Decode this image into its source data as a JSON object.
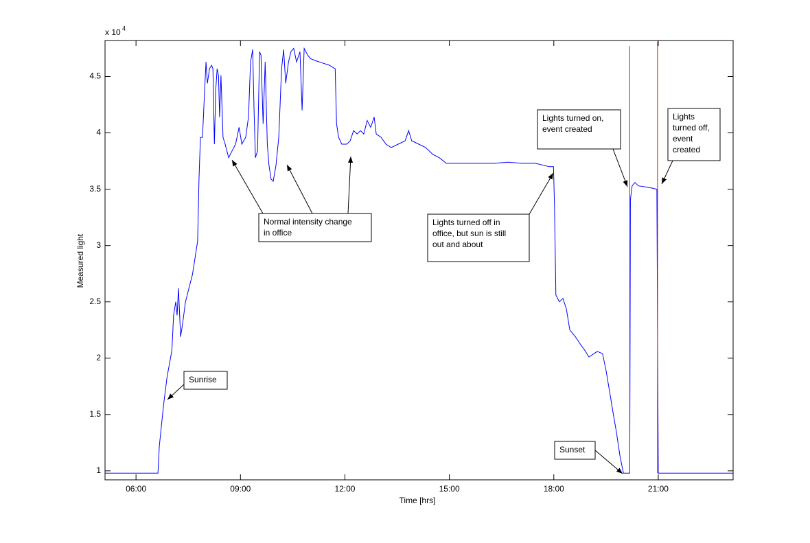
{
  "chart_data": {
    "type": "line",
    "xlabel": "Time [hrs]",
    "ylabel": "Measured light",
    "y_scale_label": {
      "base": "x 10",
      "exponent": "4"
    },
    "xlim": [
      5.11,
      23.15
    ],
    "xticks": [
      {
        "value": 6,
        "label": "06:00"
      },
      {
        "value": 9,
        "label": "09:00"
      },
      {
        "value": 12,
        "label": "12:00"
      },
      {
        "value": 15,
        "label": "15:00"
      },
      {
        "value": 18,
        "label": "18:00"
      },
      {
        "value": 21,
        "label": "21:00"
      }
    ],
    "ylim": [
      0.92,
      4.82
    ],
    "yticks": [
      1,
      1.5,
      2,
      2.5,
      3,
      3.5,
      4,
      4.5
    ],
    "grid": false,
    "series": [
      {
        "color": "#0000ff",
        "x": [
          5.11,
          6.63,
          6.67,
          6.79,
          6.89,
          7.03,
          7.08,
          7.14,
          7.18,
          7.22,
          7.28,
          7.34,
          7.42,
          7.52,
          7.62,
          7.71,
          7.77,
          7.81,
          7.85,
          7.91,
          7.97,
          8.01,
          8.05,
          8.11,
          8.17,
          8.21,
          8.25,
          8.29,
          8.33,
          8.37,
          8.4,
          8.44,
          8.5,
          8.56,
          8.66,
          8.76,
          8.86,
          8.96,
          9.04,
          9.15,
          9.23,
          9.29,
          9.35,
          9.39,
          9.43,
          9.49,
          9.55,
          9.59,
          9.65,
          9.71,
          9.77,
          9.82,
          9.88,
          9.94,
          10.02,
          10.1,
          10.18,
          10.24,
          10.3,
          10.38,
          10.45,
          10.53,
          10.61,
          10.71,
          10.77,
          10.83,
          10.93,
          11.01,
          11.16,
          11.36,
          11.56,
          11.66,
          11.72,
          11.76,
          11.82,
          11.91,
          12.05,
          12.15,
          12.25,
          12.35,
          12.45,
          12.54,
          12.64,
          12.74,
          12.84,
          12.9,
          13.04,
          13.18,
          13.33,
          13.53,
          13.73,
          13.83,
          13.92,
          14.12,
          14.32,
          14.52,
          14.71,
          14.91,
          15.11,
          15.5,
          15.9,
          16.29,
          16.68,
          17.08,
          17.47,
          17.87,
          17.99,
          18.02,
          18.06,
          18.16,
          18.26,
          18.36,
          18.46,
          18.62,
          18.75,
          18.89,
          19.01,
          19.15,
          19.25,
          19.4,
          19.5,
          19.6,
          19.7,
          19.8,
          19.9,
          20.0,
          20.18,
          20.2,
          20.25,
          20.33,
          20.43,
          20.63,
          20.82,
          20.96,
          20.98,
          21.0,
          23.15
        ],
        "values": [
          0.98,
          0.98,
          1.22,
          1.58,
          1.83,
          2.07,
          2.38,
          2.5,
          2.38,
          2.62,
          2.19,
          2.31,
          2.5,
          2.62,
          2.74,
          2.92,
          3.04,
          3.59,
          3.96,
          3.96,
          4.38,
          4.63,
          4.44,
          4.57,
          4.6,
          4.57,
          3.9,
          4.38,
          4.57,
          4.51,
          4.14,
          4.51,
          3.96,
          3.9,
          3.78,
          3.84,
          3.9,
          4.05,
          3.9,
          3.96,
          4.14,
          4.63,
          4.74,
          4.2,
          3.78,
          3.84,
          4.72,
          4.69,
          4.08,
          4.63,
          3.9,
          3.71,
          3.59,
          3.57,
          3.71,
          3.96,
          4.57,
          4.74,
          4.44,
          4.63,
          4.72,
          4.75,
          4.63,
          4.72,
          4.2,
          4.75,
          4.69,
          4.66,
          4.64,
          4.62,
          4.6,
          4.58,
          4.57,
          4.08,
          3.96,
          3.9,
          3.9,
          3.93,
          4.02,
          3.99,
          4.02,
          3.99,
          4.11,
          4.05,
          4.14,
          3.99,
          3.96,
          3.9,
          3.87,
          3.9,
          3.93,
          4.02,
          3.93,
          3.9,
          3.87,
          3.81,
          3.78,
          3.73,
          3.73,
          3.73,
          3.73,
          3.73,
          3.74,
          3.73,
          3.73,
          3.7,
          3.7,
          3.35,
          2.56,
          2.5,
          2.53,
          2.44,
          2.25,
          2.19,
          2.13,
          2.07,
          2.01,
          2.04,
          2.06,
          2.04,
          1.89,
          1.71,
          1.52,
          1.34,
          1.13,
          0.98,
          0.98,
          3.41,
          3.53,
          3.56,
          3.53,
          3.52,
          3.51,
          3.5,
          2.25,
          0.98,
          0.98
        ]
      },
      {
        "color": "#ff0000",
        "x": [
          20.18,
          20.18,
          20.18,
          20.98,
          20.98
        ],
        "values": [
          0.98,
          4.77,
          null,
          0.98,
          4.81
        ]
      }
    ],
    "annotations": [
      {
        "lines": [
          "Sunrise"
        ]
      },
      {
        "lines": [
          "Normal intensity change",
          "in office"
        ]
      },
      {
        "lines": [
          "Lights turned off in",
          "office, but sun is still",
          "out and about"
        ]
      },
      {
        "lines": [
          "Lights turned on,",
          "event created"
        ]
      },
      {
        "lines": [
          "Lights",
          "turned off,",
          "event",
          "created"
        ]
      },
      {
        "lines": [
          "Sunset"
        ]
      }
    ]
  }
}
